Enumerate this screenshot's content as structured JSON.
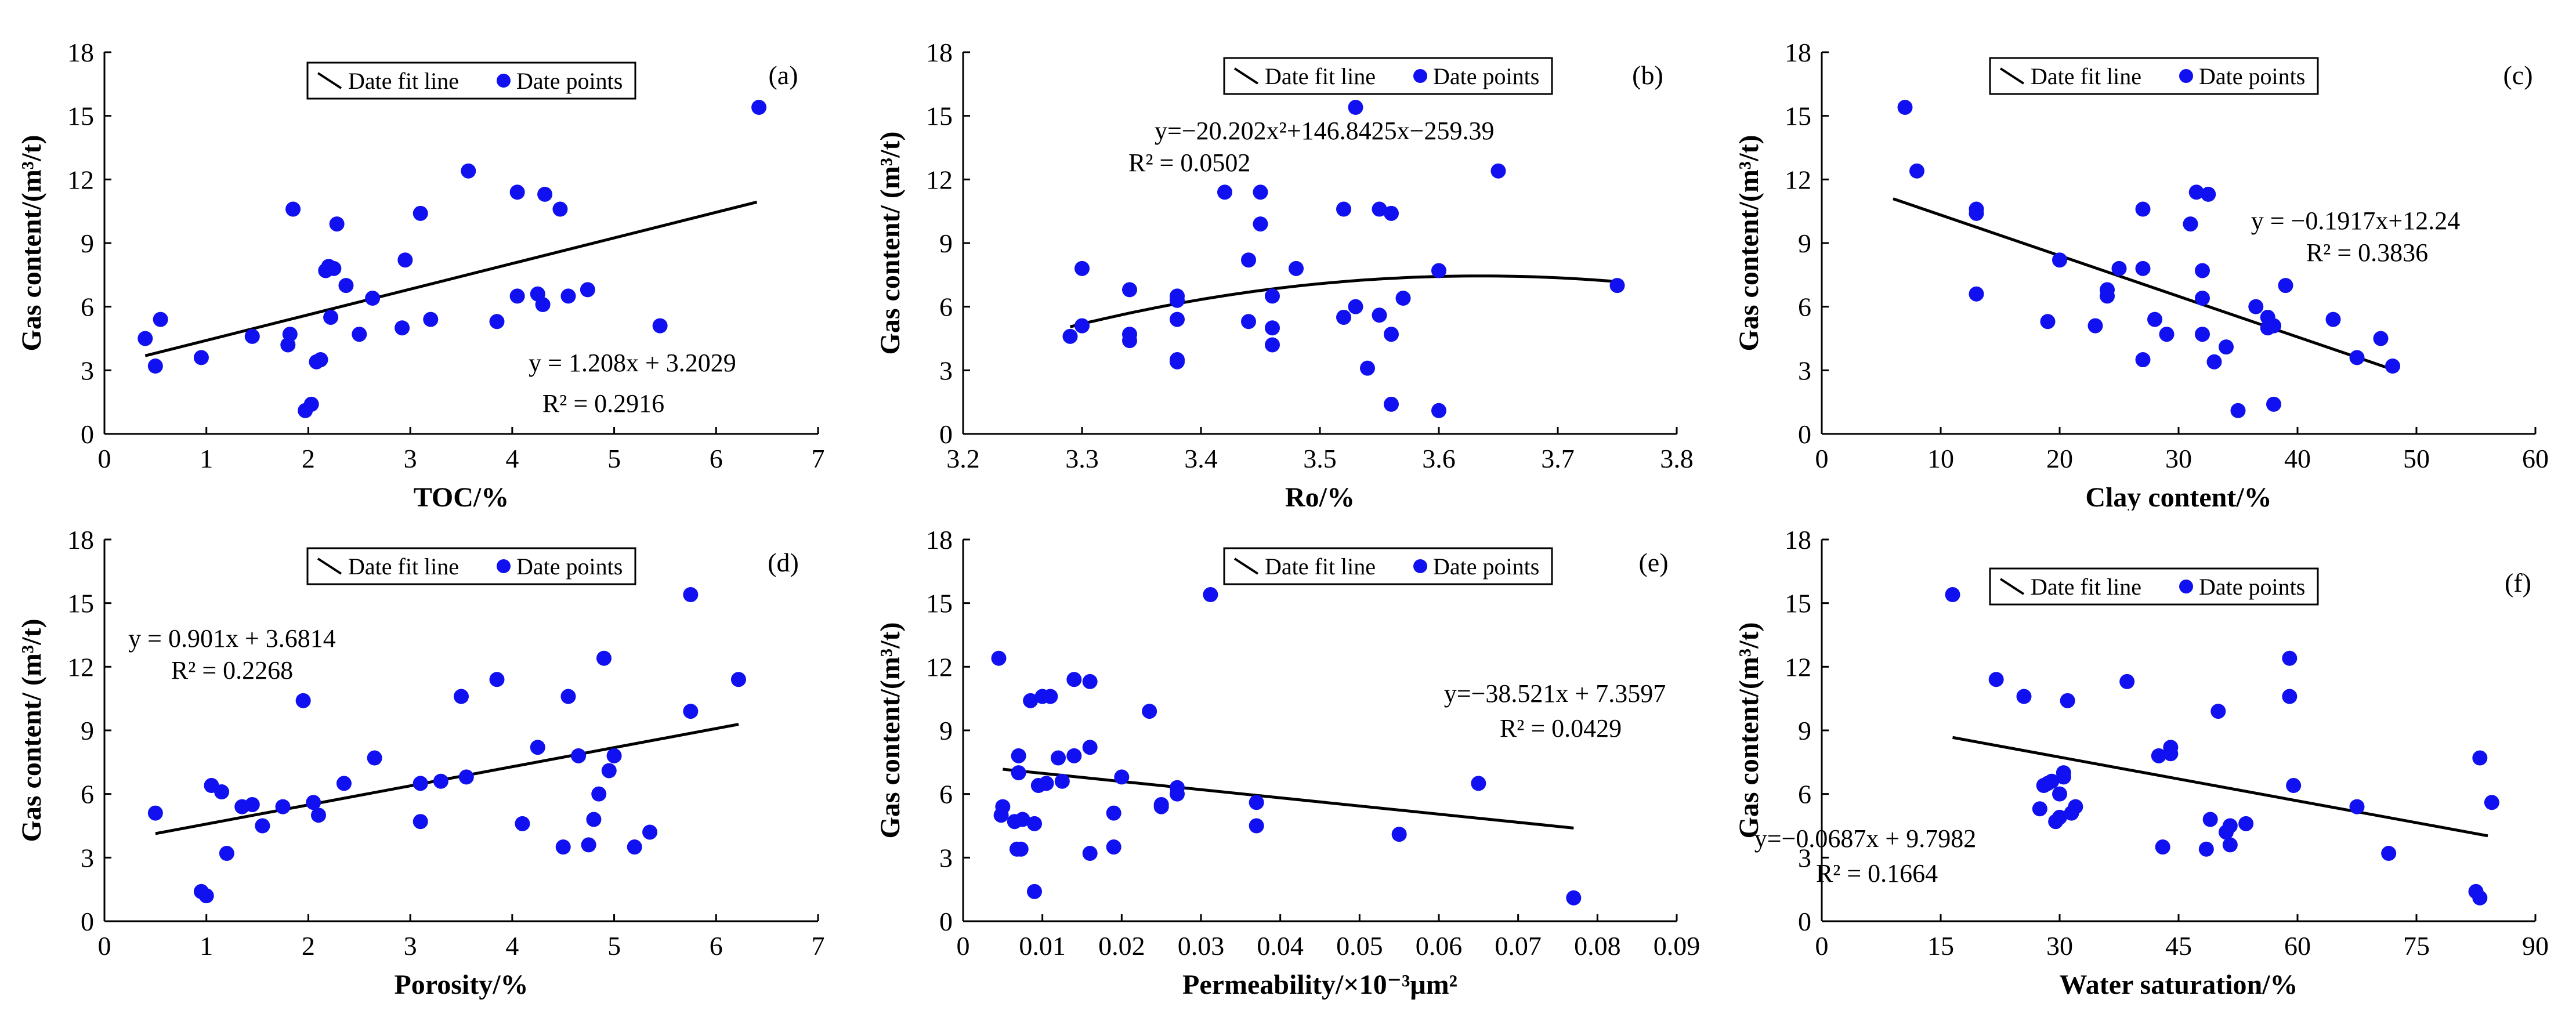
{
  "chart_data": [
    {
      "type": "scatter",
      "panel_label": "(a)",
      "xlabel": "TOC/%",
      "ylabel": "Gas content/(m³/t)",
      "xlim": [
        0,
        7
      ],
      "ylim": [
        0,
        18
      ],
      "xticks": [
        "0",
        "1",
        "2",
        "3",
        "4",
        "5",
        "6",
        "7"
      ],
      "yticks": [
        "0",
        "3",
        "6",
        "9",
        "12",
        "15",
        "18"
      ],
      "legend": {
        "line": "Date fit line",
        "points": "Date points",
        "position": "top-center"
      },
      "fit": {
        "kind": "linear",
        "coef": [
          1.208,
          3.2029
        ],
        "x_range": [
          0.4,
          6.4
        ]
      },
      "equation": "y = 1.208x + 3.2029",
      "r2": "R² = 0.2916",
      "points": {
        "x": [
          0.4,
          0.5,
          0.55,
          0.95,
          1.45,
          1.8,
          1.82,
          1.85,
          1.97,
          2.03,
          2.08,
          2.12,
          2.17,
          2.2,
          2.22,
          2.25,
          2.28,
          2.37,
          2.5,
          2.63,
          2.92,
          2.95,
          3.1,
          3.2,
          3.57,
          3.85,
          4.05,
          4.05,
          4.25,
          4.3,
          4.32,
          4.47,
          4.55,
          4.74,
          5.45,
          6.42
        ],
        "y": [
          4.5,
          3.2,
          5.4,
          3.6,
          4.6,
          4.2,
          4.7,
          10.6,
          1.1,
          1.4,
          3.4,
          3.5,
          7.7,
          7.9,
          5.5,
          7.8,
          9.9,
          7.0,
          4.7,
          6.4,
          5.0,
          8.2,
          10.4,
          5.4,
          12.4,
          5.3,
          6.5,
          11.4,
          6.6,
          6.1,
          11.3,
          10.6,
          6.5,
          6.8,
          5.1,
          15.4
        ]
      }
    },
    {
      "type": "scatter",
      "panel_label": "(b)",
      "xlabel": "Ro/%",
      "ylabel": "Gas content/ (m³/t)",
      "xlim": [
        3.2,
        3.8
      ],
      "ylim": [
        0,
        18
      ],
      "xticks": [
        "3.2",
        "3.3",
        "3.4",
        "3.5",
        "3.6",
        "3.7",
        "3.8"
      ],
      "yticks": [
        "0",
        "3",
        "6",
        "9",
        "12",
        "15",
        "18"
      ],
      "legend": {
        "line": "Date fit line",
        "points": "Date points",
        "position": "top-center"
      },
      "fit": {
        "kind": "quadratic",
        "coef": [
          -20.202,
          146.8425,
          -259.39
        ],
        "x_range": [
          3.29,
          3.75
        ]
      },
      "equation": "y=−20.202x²+146.8425x−259.39",
      "r2": "R² = 0.0502",
      "points": {
        "x": [
          3.29,
          3.3,
          3.3,
          3.34,
          3.34,
          3.34,
          3.38,
          3.38,
          3.38,
          3.38,
          3.38,
          3.42,
          3.44,
          3.44,
          3.45,
          3.45,
          3.46,
          3.46,
          3.46,
          3.48,
          3.52,
          3.52,
          3.53,
          3.53,
          3.54,
          3.55,
          3.55,
          3.56,
          3.56,
          3.56,
          3.57,
          3.6,
          3.6,
          3.65,
          3.75
        ],
        "y": [
          4.6,
          5.1,
          7.8,
          4.7,
          4.4,
          6.8,
          5.4,
          6.5,
          6.3,
          3.5,
          3.4,
          11.4,
          5.3,
          8.2,
          11.4,
          9.9,
          5.0,
          4.2,
          6.5,
          7.8,
          10.6,
          5.5,
          15.4,
          6.0,
          3.1,
          10.6,
          5.6,
          10.4,
          4.7,
          1.4,
          6.4,
          1.1,
          7.7,
          12.4,
          7.0
        ]
      }
    },
    {
      "type": "scatter",
      "panel_label": "(c)",
      "xlabel": "Clay content/%",
      "ylabel": "Gas content/(m³/t)",
      "xlim": [
        0,
        60
      ],
      "ylim": [
        0,
        18
      ],
      "xticks": [
        "0",
        "10",
        "20",
        "30",
        "40",
        "50",
        "60"
      ],
      "yticks": [
        "0",
        "3",
        "6",
        "9",
        "12",
        "15",
        "18"
      ],
      "legend": {
        "line": "Date fit line",
        "points": "Date points",
        "position": "top-center"
      },
      "fit": {
        "kind": "linear",
        "coef": [
          -0.1917,
          12.24
        ],
        "x_range": [
          6,
          48
        ]
      },
      "equation": "y = −0.1917x+12.24",
      "r2": "R² = 0.3836",
      "points": {
        "x": [
          7,
          8,
          13,
          13,
          13,
          19,
          20,
          23,
          24,
          24,
          25,
          27,
          27,
          27,
          28,
          29,
          31,
          31.5,
          32,
          32,
          32,
          32.5,
          33,
          34,
          35,
          36.5,
          37.5,
          37.5,
          38,
          38,
          39,
          43,
          45,
          47,
          48
        ],
        "y": [
          15.4,
          12.4,
          10.6,
          10.4,
          6.6,
          5.3,
          8.2,
          5.1,
          6.5,
          6.8,
          7.8,
          3.5,
          7.8,
          10.6,
          5.4,
          4.7,
          9.9,
          11.4,
          6.4,
          7.7,
          4.7,
          11.3,
          3.4,
          4.1,
          1.1,
          6.0,
          5.5,
          5.0,
          1.4,
          5.1,
          7.0,
          5.4,
          3.6,
          4.5,
          3.2
        ]
      }
    },
    {
      "type": "scatter",
      "panel_label": "(d)",
      "xlabel": "Porosity/%",
      "ylabel": "Gas content/ (m³/t)",
      "xlim": [
        0,
        7
      ],
      "ylim": [
        0,
        18
      ],
      "xticks": [
        "0",
        "1",
        "2",
        "3",
        "4",
        "5",
        "6",
        "7"
      ],
      "yticks": [
        "0",
        "3",
        "6",
        "9",
        "12",
        "15",
        "18"
      ],
      "legend": {
        "line": "Date fit line",
        "points": "Date points",
        "position": "top-center"
      },
      "fit": {
        "kind": "linear",
        "coef": [
          0.901,
          3.6814
        ],
        "x_range": [
          0.5,
          6.22
        ]
      },
      "equation": "y = 0.901x + 3.6814",
      "r2": "R² = 0.2268",
      "points": {
        "x": [
          0.5,
          0.95,
          1.0,
          1.05,
          1.15,
          1.2,
          1.35,
          1.45,
          1.55,
          1.75,
          1.95,
          2.05,
          2.1,
          2.35,
          2.65,
          3.1,
          3.1,
          3.3,
          3.5,
          3.55,
          3.85,
          4.1,
          4.25,
          4.5,
          4.55,
          4.65,
          4.75,
          4.8,
          4.85,
          4.9,
          4.95,
          5.0,
          5.2,
          5.35,
          5.75,
          5.75,
          6.22
        ],
        "y": [
          5.1,
          1.4,
          1.2,
          6.4,
          6.1,
          3.2,
          5.4,
          5.5,
          4.5,
          5.4,
          10.4,
          5.6,
          5.0,
          6.5,
          7.7,
          4.7,
          6.5,
          6.6,
          10.6,
          6.8,
          11.4,
          4.6,
          8.2,
          3.5,
          10.6,
          7.8,
          3.6,
          4.8,
          6.0,
          12.4,
          7.1,
          7.8,
          3.5,
          4.2,
          15.4,
          9.9,
          11.4
        ]
      }
    },
    {
      "type": "scatter",
      "panel_label": "(e)",
      "xlabel": "Permeability/×10⁻³μm²",
      "ylabel": "Gas content/(m³/t)",
      "xlim": [
        0,
        0.09
      ],
      "ylim": [
        0,
        18
      ],
      "xticks": [
        "0",
        "0.01",
        "0.02",
        "0.03",
        "0.04",
        "0.05",
        "0.06",
        "0.07",
        "0.08",
        "0.09"
      ],
      "yticks": [
        "0",
        "3",
        "6",
        "9",
        "12",
        "15",
        "18"
      ],
      "legend": {
        "line": "Date fit line",
        "points": "Date points",
        "position": "top-center"
      },
      "fit": {
        "kind": "linear",
        "coef": [
          -38.521,
          7.3597
        ],
        "x_range": [
          0.005,
          0.077
        ]
      },
      "equation": "y=−38.521x + 7.3597",
      "r2": "R² = 0.0429",
      "points": {
        "x": [
          0.0045,
          0.0048,
          0.005,
          0.0065,
          0.0068,
          0.007,
          0.007,
          0.0073,
          0.0075,
          0.0085,
          0.009,
          0.009,
          0.0095,
          0.01,
          0.0105,
          0.011,
          0.012,
          0.0125,
          0.014,
          0.014,
          0.016,
          0.016,
          0.016,
          0.019,
          0.019,
          0.02,
          0.0235,
          0.025,
          0.025,
          0.027,
          0.027,
          0.0312,
          0.037,
          0.037,
          0.055,
          0.065,
          0.077
        ],
        "y": [
          12.4,
          5.0,
          5.4,
          4.7,
          3.4,
          7.0,
          7.8,
          3.4,
          4.8,
          10.4,
          4.6,
          1.4,
          6.4,
          10.6,
          6.5,
          10.6,
          7.7,
          6.6,
          11.4,
          7.8,
          11.3,
          8.2,
          3.2,
          3.5,
          5.1,
          6.8,
          9.9,
          5.4,
          5.5,
          6.0,
          6.3,
          15.4,
          4.5,
          5.6,
          4.1,
          6.5,
          1.1
        ]
      }
    },
    {
      "type": "scatter",
      "panel_label": "(f)",
      "xlabel": "Water saturation/%",
      "ylabel": "Gas content/(m³/t)",
      "xlim": [
        0,
        90
      ],
      "ylim": [
        0,
        18
      ],
      "xticks": [
        "0",
        "15",
        "30",
        "45",
        "60",
        "75",
        "90"
      ],
      "yticks": [
        "0",
        "3",
        "6",
        "9",
        "12",
        "15",
        "18"
      ],
      "legend": {
        "line": "Date fit line",
        "points": "Date points",
        "position": "top-center"
      },
      "fit": {
        "kind": "linear",
        "coef": [
          -0.0687,
          9.7982
        ],
        "x_range": [
          16.5,
          84
        ]
      },
      "equation": "y=−0.0687x + 9.7982",
      "r2": "R² = 0.1664",
      "points": {
        "x": [
          16.5,
          22,
          25.5,
          27.5,
          28,
          28.5,
          29,
          29.5,
          30,
          30,
          30.5,
          30.5,
          31,
          31.5,
          32,
          38.5,
          42.5,
          43,
          44,
          44,
          48.5,
          49,
          50,
          51,
          51.5,
          51.5,
          53.5,
          59,
          59,
          59.5,
          67.5,
          71.5,
          82.5,
          83,
          83,
          84.5
        ],
        "y": [
          15.4,
          11.4,
          10.6,
          5.3,
          6.4,
          6.5,
          6.6,
          4.7,
          6.0,
          4.9,
          6.8,
          7.0,
          10.4,
          5.1,
          5.4,
          11.3,
          7.8,
          3.5,
          7.9,
          8.2,
          3.4,
          4.8,
          9.9,
          4.2,
          4.5,
          3.6,
          4.6,
          12.4,
          10.6,
          6.4,
          5.4,
          3.2,
          1.4,
          1.1,
          7.7,
          5.6
        ]
      }
    }
  ]
}
